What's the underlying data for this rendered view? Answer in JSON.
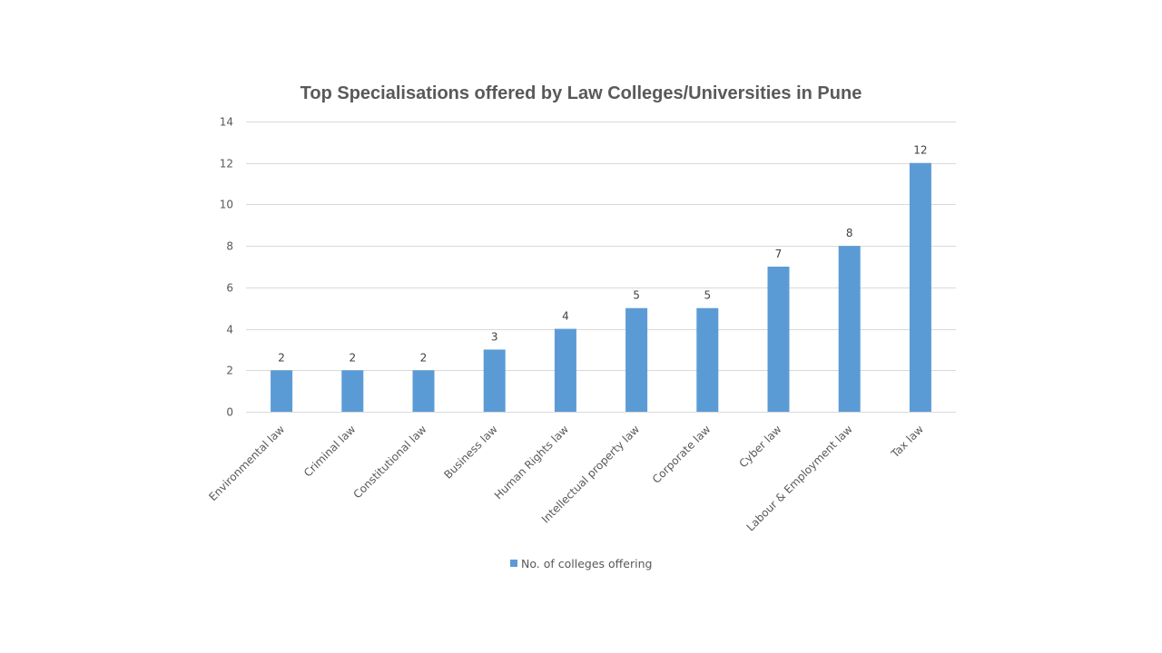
{
  "chart_data": {
    "type": "bar",
    "title": "Top Specialisations offered by Law Colleges/Universities in Pune",
    "xlabel": "",
    "ylabel": "",
    "categories": [
      "Environmental law",
      "Criminal law",
      "Constitutional law",
      "Business law",
      "Human Rights law",
      "Intellectual property law",
      "Corporate law",
      "Cyber law",
      "Labour & Employment law",
      "Tax law"
    ],
    "series": [
      {
        "name": "No. of colleges offering",
        "color": "#5b9bd5",
        "values": [
          2,
          2,
          2,
          3,
          4,
          5,
          5,
          7,
          8,
          12
        ]
      }
    ],
    "ylim": [
      0,
      14
    ],
    "yticks": [
      0,
      2,
      4,
      6,
      8,
      10,
      12,
      14
    ],
    "grid": true,
    "data_labels": true,
    "legend_position": "bottom"
  }
}
